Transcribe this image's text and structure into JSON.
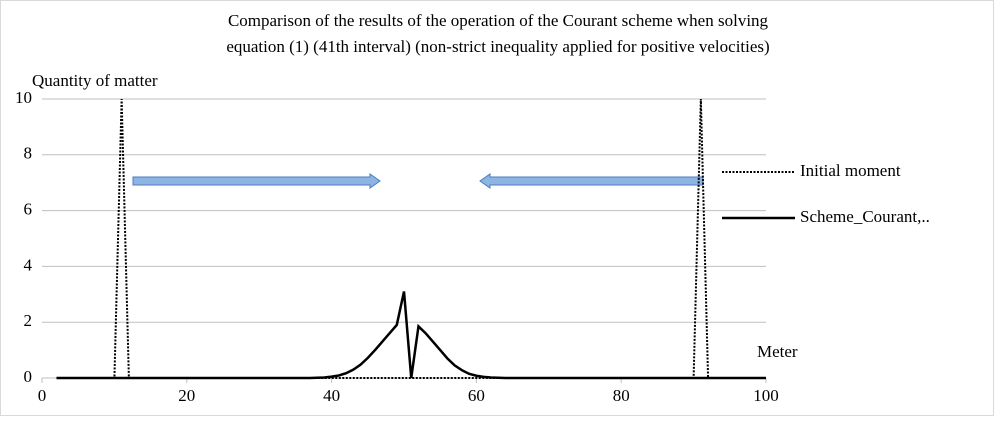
{
  "chart_data": {
    "type": "line",
    "title": [
      "Comparison of the results of the operation of the Courant scheme when solving",
      "equation (1) (41th interval) (non-strict inequality applied for positive velocities)"
    ],
    "y_label": "Quantity of matter",
    "x_label": "Meter",
    "xlim": [
      0,
      100
    ],
    "xticks": [
      0,
      20,
      40,
      60,
      80,
      100
    ],
    "ylim": [
      0,
      10
    ],
    "yticks": [
      0,
      2,
      4,
      6,
      8,
      10
    ],
    "grid": true,
    "legend": "right",
    "series": [
      {
        "name": "Initial moment",
        "color": "#000000",
        "dash": "dotted",
        "x": [
          2,
          10,
          11,
          12,
          90,
          91,
          92,
          100
        ],
        "values": [
          0,
          0,
          10,
          0,
          0,
          10,
          0,
          0
        ]
      },
      {
        "name": "Scheme_Courant,..",
        "color": "#000000",
        "dash": "solid",
        "x": [
          2,
          37,
          38,
          39,
          40,
          41,
          42,
          43,
          44,
          45,
          46,
          47,
          48,
          49,
          50,
          51,
          52,
          53,
          54,
          55,
          56,
          57,
          58,
          59,
          60,
          61,
          62,
          63,
          64,
          100
        ],
        "values": [
          0,
          0,
          0.01,
          0.02,
          0.05,
          0.09,
          0.17,
          0.3,
          0.48,
          0.72,
          1.0,
          1.3,
          1.6,
          1.9,
          3.1,
          0,
          1.85,
          1.6,
          1.3,
          1.0,
          0.7,
          0.45,
          0.28,
          0.15,
          0.08,
          0.04,
          0.02,
          0.01,
          0,
          0
        ]
      }
    ]
  }
}
